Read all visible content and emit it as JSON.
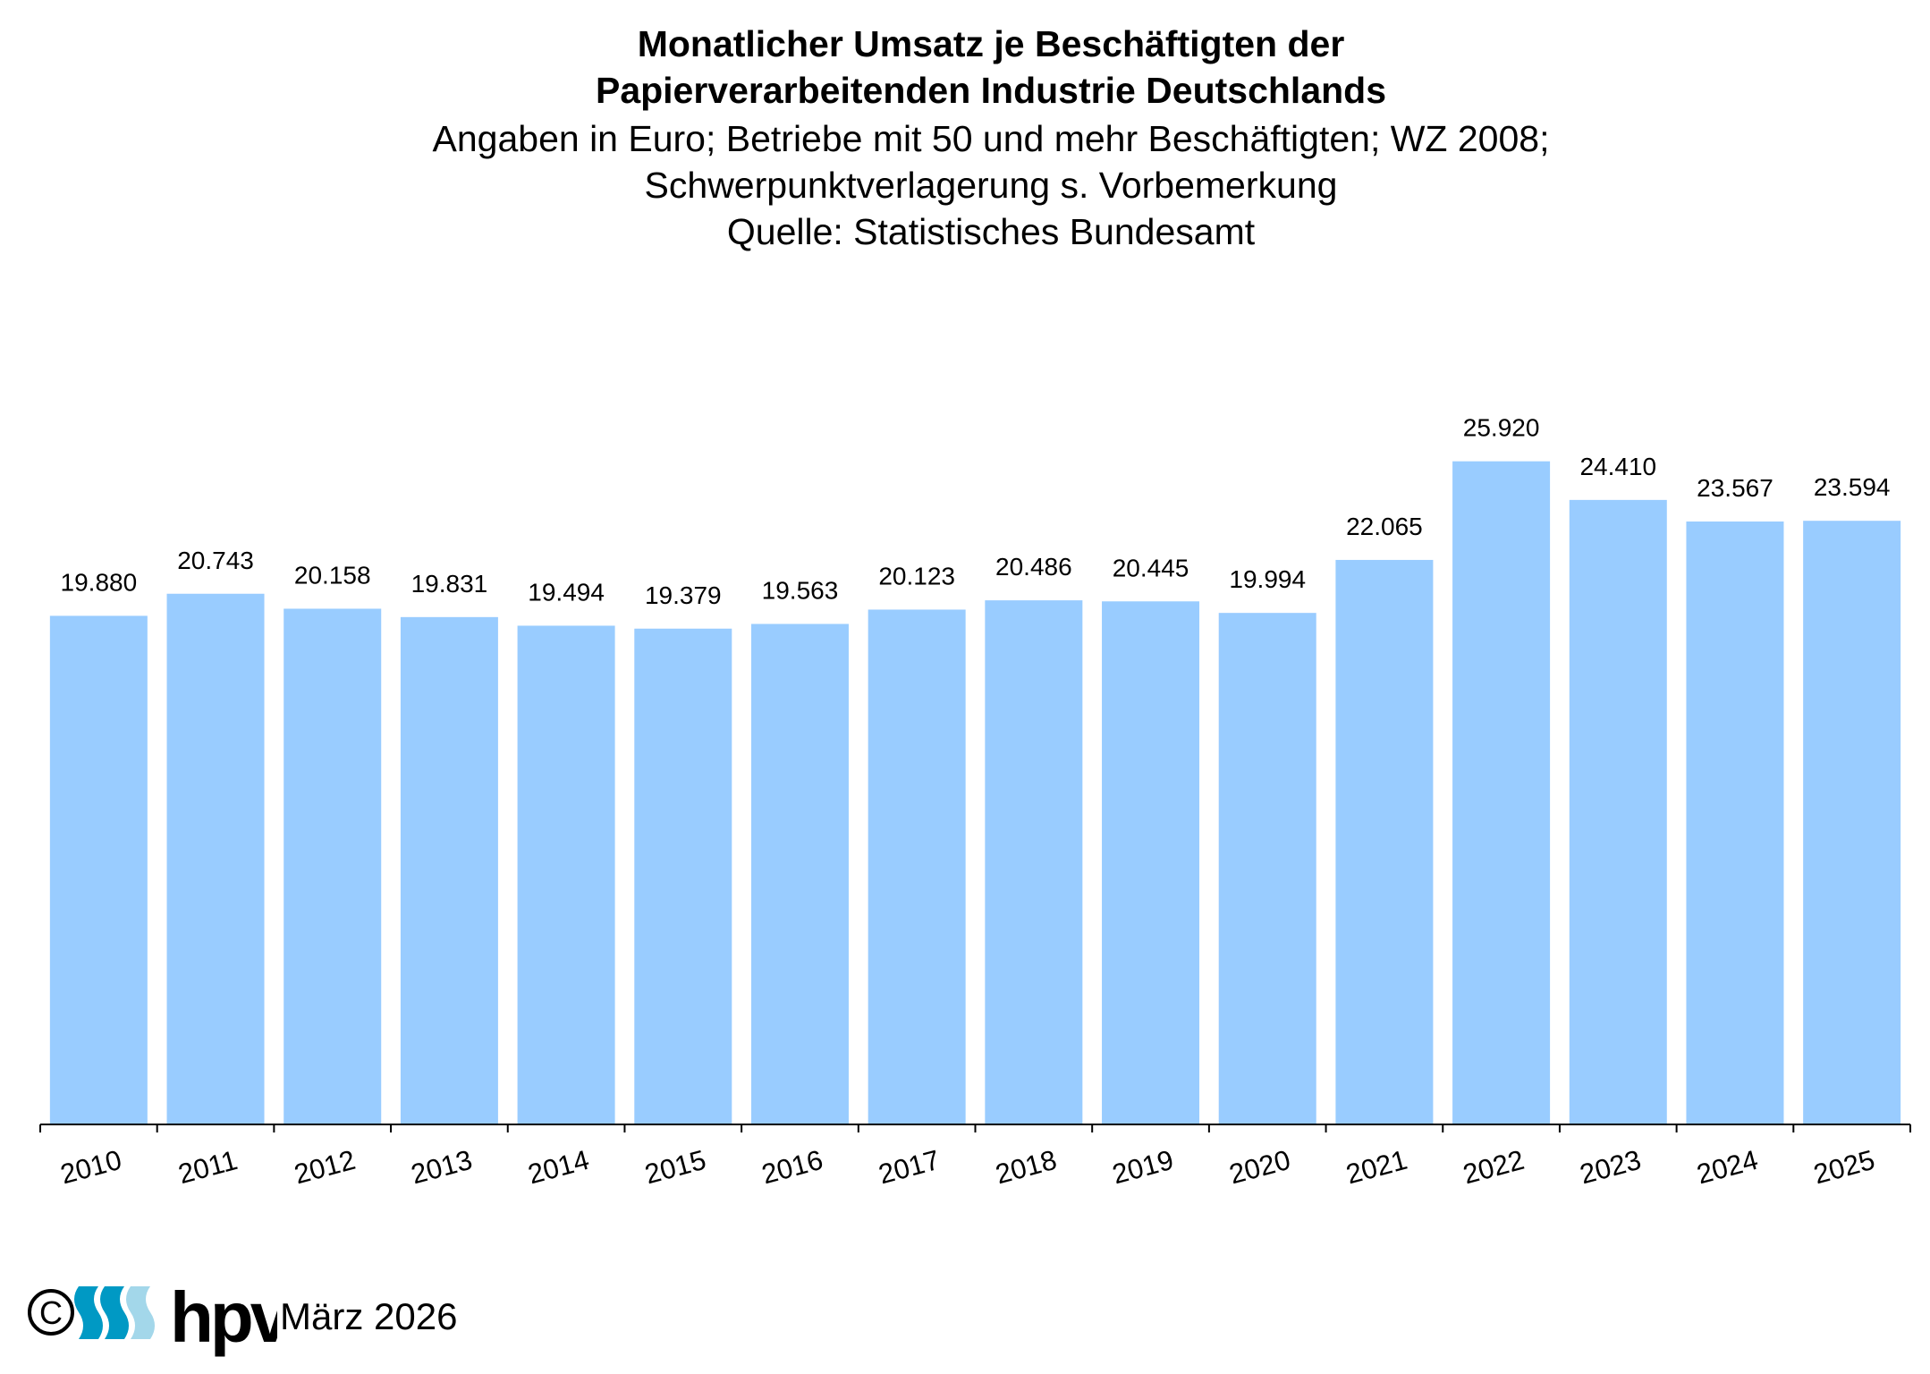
{
  "header": {
    "title_line1": "Monatlicher Umsatz je Beschäftigten der",
    "title_line2": "Papierverarbeitenden Industrie Deutschlands",
    "subtitle_line1": "Angaben in Euro; Betriebe mit 50 und mehr Beschäftigten; WZ 2008;",
    "subtitle_line2": "Schwerpunktverlagerung s. Vorbemerkung",
    "subtitle_line3": "Quelle: Statistisches Bundesamt"
  },
  "chart_data": {
    "type": "bar",
    "title": "Monatlicher Umsatz je Beschäftigten der Papierverarbeitenden Industrie Deutschlands",
    "xlabel": "",
    "ylabel": "Euro",
    "ylim": [
      0,
      30000
    ],
    "grid": false,
    "categories": [
      "2010",
      "2011",
      "2012",
      "2013",
      "2014",
      "2015",
      "2016",
      "2017",
      "2018",
      "2019",
      "2020",
      "2021",
      "2022",
      "2023",
      "2024",
      "2025"
    ],
    "values": [
      19880,
      20743,
      20158,
      19831,
      19494,
      19379,
      19563,
      20123,
      20486,
      20445,
      19994,
      22065,
      25920,
      24410,
      23567,
      23594
    ],
    "data_labels": [
      "19.880",
      "20.743",
      "20.158",
      "19.831",
      "19.494",
      "19.379",
      "19.563",
      "20.123",
      "20.486",
      "20.445",
      "19.994",
      "22.065",
      "25.920",
      "24.410",
      "23.567",
      "23.594"
    ],
    "bar_color": "#99ccff"
  },
  "footer": {
    "logo_text": "hpv",
    "copyright_symbol": "©",
    "date": "März 2026",
    "logo_colors": [
      "#0099c4",
      "#0099c4",
      "#a3d7ea"
    ]
  }
}
